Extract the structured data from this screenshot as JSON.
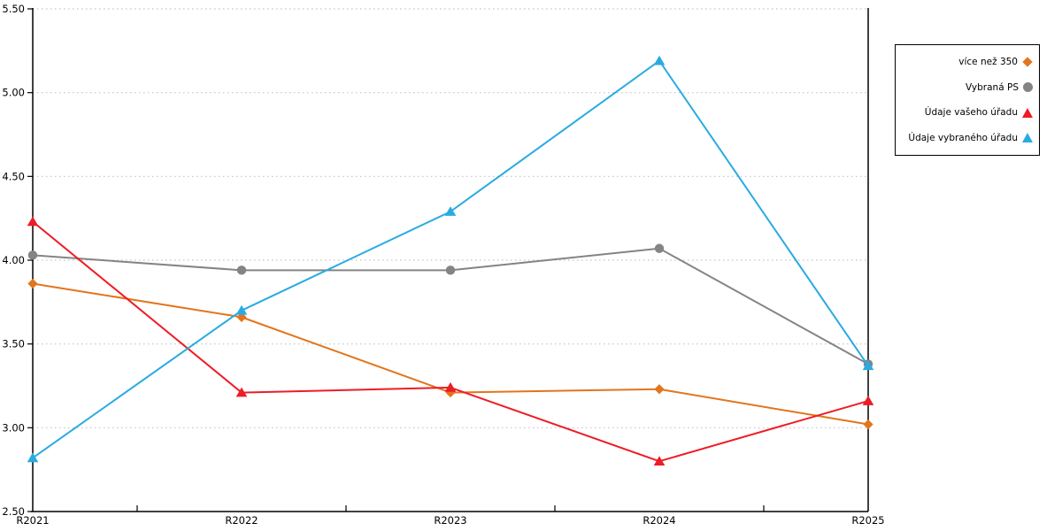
{
  "chart_data": {
    "type": "line",
    "title": "",
    "xlabel": "",
    "ylabel": "",
    "categories": [
      "R2021",
      "R2022",
      "R2023",
      "R2024",
      "R2025"
    ],
    "series": [
      {
        "name": "více než 350",
        "marker": "diamond",
        "color": "#E2751D",
        "values": [
          3.86,
          3.66,
          3.21,
          3.23,
          3.02
        ]
      },
      {
        "name": "Vybraná PS",
        "marker": "circle",
        "color": "#848484",
        "values": [
          4.03,
          3.94,
          3.94,
          4.07,
          3.38
        ]
      },
      {
        "name": "Údaje vašeho úřadu",
        "marker": "triangle",
        "color": "#EE1C25",
        "values": [
          4.23,
          3.21,
          3.24,
          2.8,
          3.16
        ]
      },
      {
        "name": "Údaje vybraného úřadu",
        "marker": "triangle",
        "color": "#29ABE2",
        "values": [
          2.82,
          3.7,
          4.29,
          5.19,
          3.37
        ]
      }
    ],
    "ylim": [
      2.5,
      5.5
    ],
    "ytick_step": 0.5,
    "ytick_labels": [
      "2.50",
      "3.00",
      "3.50",
      "4.00",
      "4.50",
      "5.00",
      "5.50"
    ],
    "grid": "horizontal-dotted",
    "legend_position": "outside-top-right"
  },
  "colors": {
    "axis": "#000000",
    "grid": "#C3C3C3",
    "background": "#FFFFFF",
    "legend_border": "#000000",
    "label_text": "#000000"
  }
}
